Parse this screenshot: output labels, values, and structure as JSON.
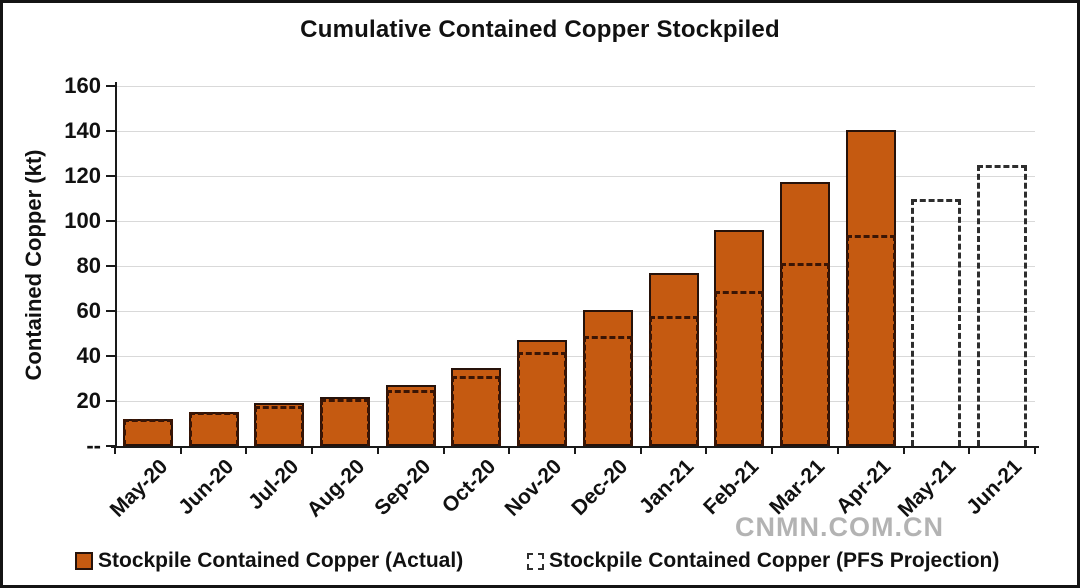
{
  "watermark": "CNMN.COM.CN",
  "colors": {
    "actual_fill": "#C55A11",
    "actual_border": "#26120a",
    "proj_dash_on_actual": "#3a1505",
    "proj_dash_standalone": "#2e2e2e",
    "gridline": "#d9d9d9",
    "axis": "#1a1a1a",
    "watermark": "#b3b3b3"
  },
  "legend": {
    "actual_label": "Stockpile Contained Copper (Actual)",
    "projection_label": "Stockpile Contained Copper (PFS Projection)"
  },
  "chart_data": {
    "type": "bar",
    "title": "Cumulative Contained Copper Stockpiled",
    "xlabel": "",
    "ylabel": "Contained Copper (kt)",
    "ylim": [
      0,
      160
    ],
    "ytick_interval": 20,
    "ytick_labels": [
      "--",
      "20",
      "40",
      "60",
      "80",
      "100",
      "120",
      "140",
      "160"
    ],
    "grid": true,
    "legend_position": "bottom",
    "categories": [
      "May-20",
      "Jun-20",
      "Jul-20",
      "Aug-20",
      "Sep-20",
      "Oct-20",
      "Nov-20",
      "Dec-20",
      "Jan-21",
      "Feb-21",
      "Mar-21",
      "Apr-21",
      "May-21",
      "Jun-21"
    ],
    "series": [
      {
        "name": "Stockpile Contained Copper (Actual)",
        "style": "filled-bar",
        "values": [
          12,
          15,
          19,
          22,
          27,
          34.5,
          47,
          60.5,
          77,
          96,
          117.5,
          140.5,
          null,
          null
        ]
      },
      {
        "name": "Stockpile Contained Copper (PFS Projection)",
        "style": "dashed-outline-bar",
        "values": [
          12,
          15,
          18,
          21,
          25,
          31,
          42,
          49,
          58,
          69,
          81.5,
          94,
          110,
          125
        ]
      }
    ]
  }
}
